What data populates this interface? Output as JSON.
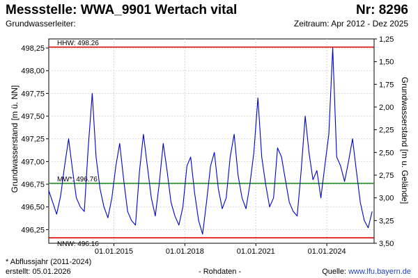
{
  "header": {
    "title": "Messstelle: WWA_9901 Wertach vital",
    "nr": "Nr: 8296",
    "aquifer_label": "Grundwasserleiter:",
    "period": "Zeitraum: Apr 2012 - Dez 2025"
  },
  "footer": {
    "footnote": "* Abflussjahr (2011-2024)",
    "created": "erstellt:  05.01.2026",
    "raw": "- Rohdaten -",
    "source_prefix": "Quelle: ",
    "source_link": "www.lfu.bayern.de"
  },
  "chart_data": {
    "type": "line",
    "xlabel": "",
    "ylabel": "Grundwasserstand [m ü. NN]",
    "ylabel_right": "Grundwasserstand [m u. Gelände]",
    "x_range": [
      "2012-04-01",
      "2025-12-31"
    ],
    "ylim": [
      496.1,
      498.35
    ],
    "ylim_right": [
      3.5,
      1.25
    ],
    "x_ticks": [
      "01.01.2015",
      "01.01.2018",
      "01.01.2021",
      "01.01.2024"
    ],
    "y_ticks": [
      "498,25",
      "498,00",
      "497,75",
      "497,50",
      "497,25",
      "497,00",
      "496,75",
      "496,50",
      "496,25"
    ],
    "y_ticks_right": [
      "1,25",
      "1,50",
      "1,75",
      "2,00",
      "2,25",
      "2,50",
      "2,75",
      "3,00",
      "3,25",
      "3,50"
    ],
    "grid": true,
    "reference_lines": [
      {
        "label": "HHW: 498.26",
        "value": 498.26,
        "color": "#e00000"
      },
      {
        "label": "MW*: 496.76",
        "value": 496.76,
        "color": "#1a8a1a"
      },
      {
        "label": "NNW: 496.16",
        "value": 496.16,
        "color": "#e00000"
      }
    ],
    "series_color": "#0000c8",
    "series": [
      {
        "x": [
          "2012-04-01",
          "2012-06-01",
          "2012-08-01",
          "2012-10-01",
          "2012-12-01",
          "2013-02-01",
          "2013-04-01",
          "2013-06-01",
          "2013-08-01",
          "2013-10-01",
          "2013-12-01",
          "2014-02-01",
          "2014-04-01",
          "2014-06-01",
          "2014-08-01",
          "2014-10-01",
          "2014-12-01",
          "2015-02-01",
          "2015-04-01",
          "2015-06-01",
          "2015-08-01",
          "2015-10-01",
          "2015-12-01",
          "2016-02-01",
          "2016-04-01",
          "2016-06-01",
          "2016-08-01",
          "2016-10-01",
          "2016-12-01",
          "2017-02-01",
          "2017-04-01",
          "2017-06-01",
          "2017-08-01",
          "2017-10-01",
          "2017-12-01",
          "2018-02-01",
          "2018-04-01",
          "2018-06-01",
          "2018-08-01",
          "2018-10-01",
          "2018-12-01",
          "2019-02-01",
          "2019-04-01",
          "2019-06-01",
          "2019-08-01",
          "2019-10-01",
          "2019-12-01",
          "2020-02-01",
          "2020-04-01",
          "2020-06-01",
          "2020-08-01",
          "2020-10-01",
          "2020-12-01",
          "2021-02-01",
          "2021-04-01",
          "2021-06-01",
          "2021-08-01",
          "2021-10-01",
          "2021-12-01",
          "2022-02-01",
          "2022-04-01",
          "2022-06-01",
          "2022-08-01",
          "2022-10-01",
          "2022-12-01",
          "2023-02-01",
          "2023-04-01",
          "2023-06-01",
          "2023-08-01",
          "2023-10-01",
          "2023-12-01",
          "2024-02-01",
          "2024-04-01",
          "2024-06-01",
          "2024-08-01",
          "2024-10-01",
          "2024-12-01",
          "2025-02-01",
          "2025-04-01",
          "2025-06-01",
          "2025-08-01",
          "2025-10-01",
          "2025-12-01"
        ],
        "y": [
          496.68,
          496.55,
          496.42,
          496.62,
          496.95,
          497.25,
          496.92,
          496.6,
          496.5,
          496.45,
          497.15,
          497.75,
          497.05,
          496.7,
          496.5,
          496.38,
          496.6,
          496.95,
          497.2,
          496.8,
          496.45,
          496.35,
          496.3,
          496.9,
          497.3,
          496.95,
          496.6,
          496.4,
          496.75,
          497.2,
          496.9,
          496.55,
          496.4,
          496.3,
          496.5,
          496.95,
          497.05,
          496.65,
          496.35,
          496.2,
          496.55,
          496.95,
          497.1,
          496.7,
          496.48,
          496.6,
          497.05,
          497.3,
          496.85,
          496.6,
          496.48,
          496.75,
          497.1,
          497.7,
          497.05,
          496.75,
          496.5,
          496.6,
          497.15,
          497.05,
          496.8,
          496.55,
          496.45,
          496.4,
          496.9,
          497.5,
          497.1,
          496.8,
          496.9,
          496.6,
          496.95,
          497.3,
          498.25,
          497.05,
          496.95,
          496.78,
          497.0,
          497.25,
          496.9,
          496.55,
          496.35,
          496.27,
          496.45
        ]
      }
    ]
  }
}
